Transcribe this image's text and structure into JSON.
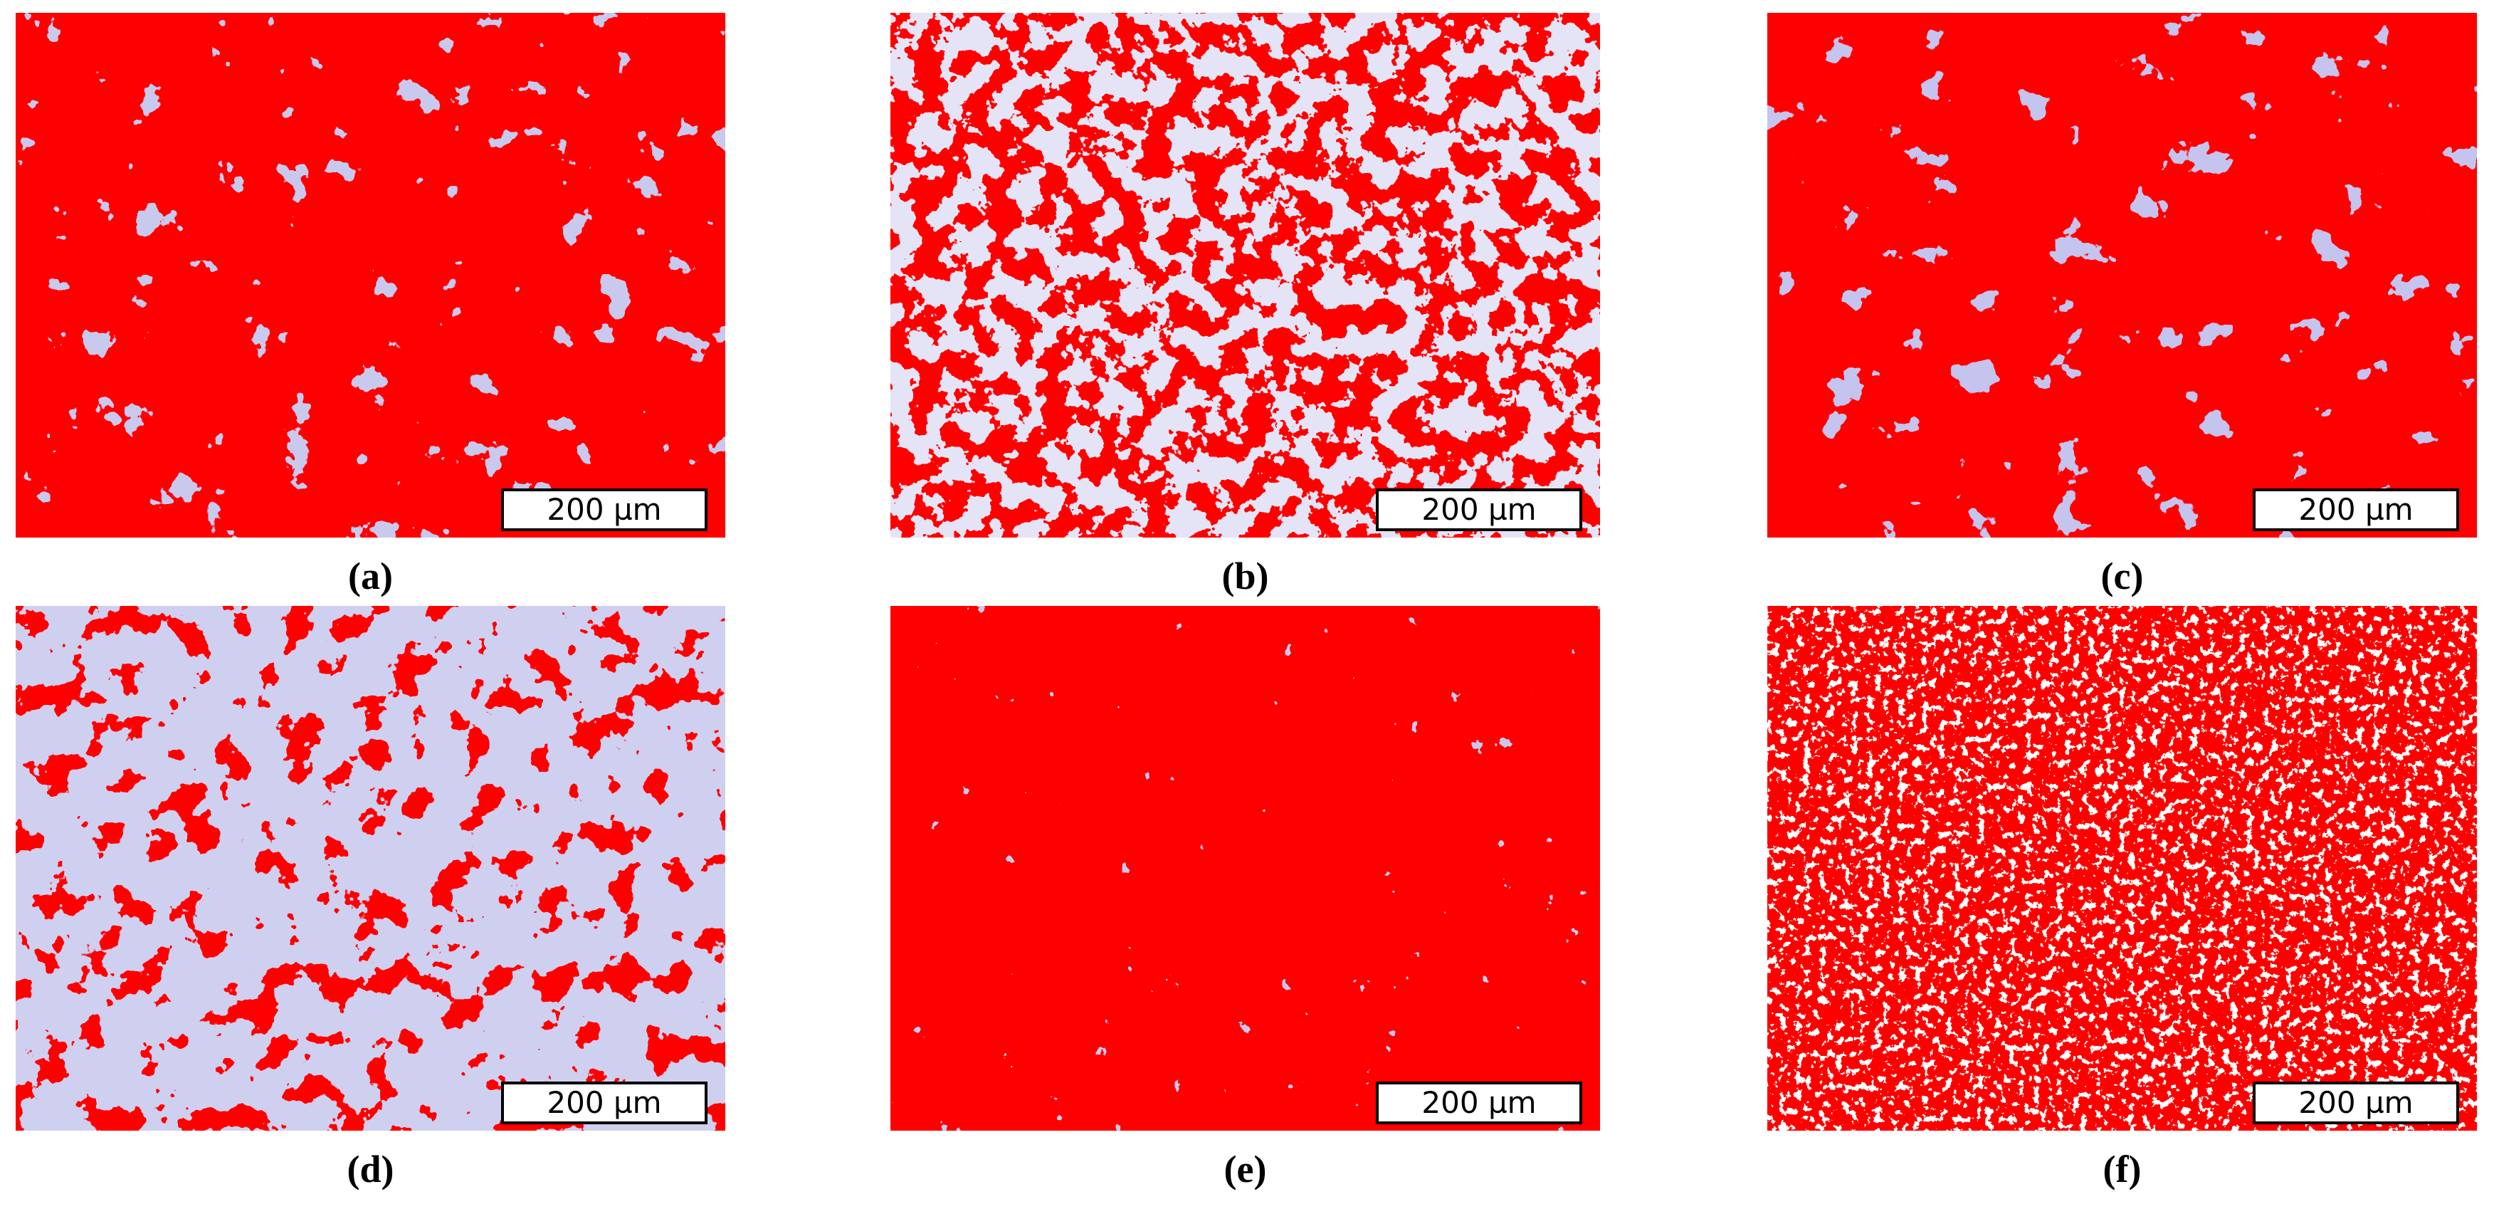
{
  "panels": [
    {
      "label": "(a)",
      "scale_bar": "200 µm"
    },
    {
      "label": "(b)",
      "scale_bar": "200 µm"
    },
    {
      "label": "(c)",
      "scale_bar": "200 µm"
    },
    {
      "label": "(d)",
      "scale_bar": "200 µm"
    },
    {
      "label": "(e)",
      "scale_bar": "200 µm"
    },
    {
      "label": "(f)",
      "scale_bar": "200 µm"
    }
  ]
}
